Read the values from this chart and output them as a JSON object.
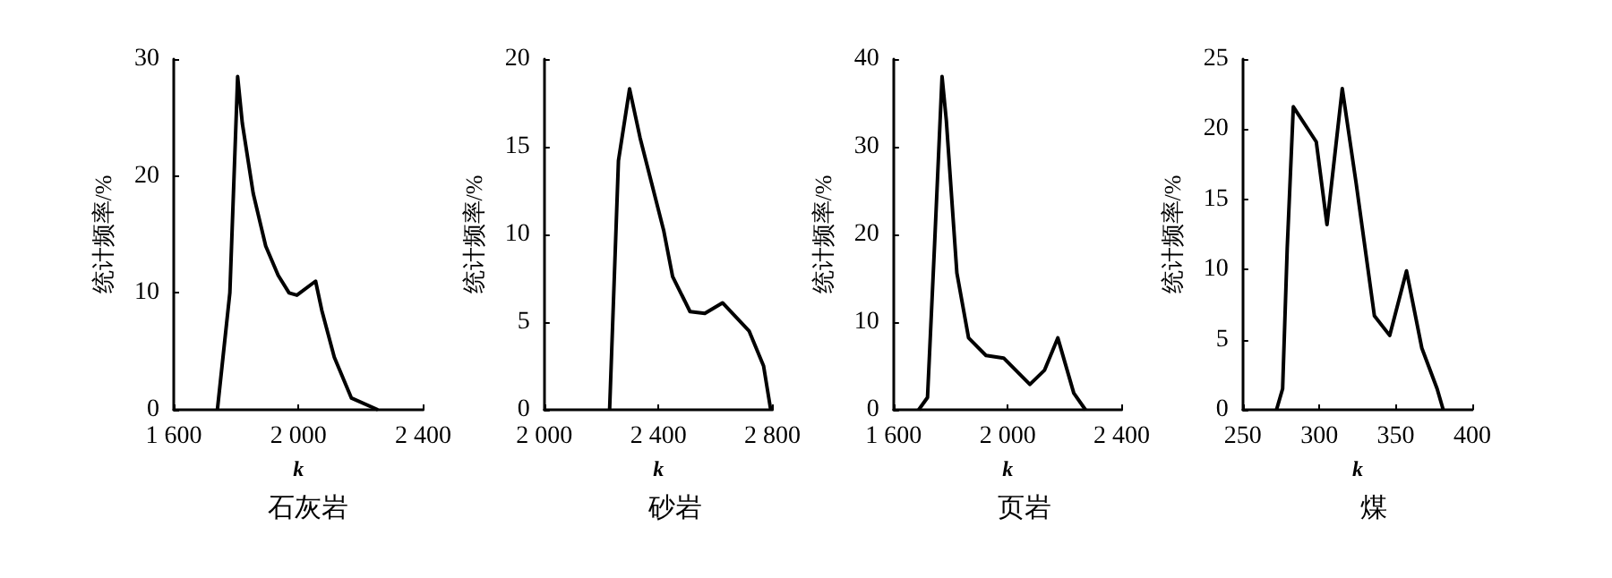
{
  "chart_data": [
    {
      "type": "line",
      "title": "石灰岩",
      "xlabel": "k",
      "ylabel": "统计频率/%",
      "grid": false,
      "marker": "none",
      "x": [
        1740,
        1780,
        1805,
        1820,
        1855,
        1895,
        1935,
        1970,
        1995,
        2055,
        2075,
        2115,
        2170,
        2255
      ],
      "series": [
        {
          "color": "#000000",
          "values": [
            0,
            10,
            28.5,
            24.5,
            18.5,
            14,
            11.5,
            10,
            9.8,
            11,
            8.5,
            4.5,
            1,
            0
          ]
        }
      ],
      "xlim": [
        1600,
        2400
      ],
      "xticks": [
        {
          "value": 1600,
          "label": "1 600"
        },
        {
          "value": 2000,
          "label": "2 000"
        },
        {
          "value": 2400,
          "label": "2 400"
        }
      ],
      "ylim": [
        0,
        30
      ],
      "yticks": [
        0,
        10,
        20,
        30
      ]
    },
    {
      "type": "line",
      "title": "砂岩",
      "xlabel": "k",
      "ylabel": "统计频率/%",
      "grid": false,
      "marker": "none",
      "x": [
        2229,
        2260,
        2299,
        2336,
        2419,
        2450,
        2511,
        2563,
        2625,
        2718,
        2769,
        2794
      ],
      "series": [
        {
          "color": "#000000",
          "values": [
            0,
            14.2,
            18.3,
            15.5,
            10.2,
            7.6,
            5.6,
            5.5,
            6.1,
            4.5,
            2.5,
            0
          ]
        }
      ],
      "xlim": [
        2000,
        2800
      ],
      "xticks": [
        {
          "value": 2000,
          "label": "2 000"
        },
        {
          "value": 2400,
          "label": "2 400"
        },
        {
          "value": 2800,
          "label": "2 800"
        }
      ],
      "ylim": [
        0,
        20
      ],
      "yticks": [
        0,
        5,
        10,
        15,
        20
      ]
    },
    {
      "type": "line",
      "title": "页岩",
      "xlabel": "k",
      "ylabel": "统计频率/%",
      "grid": false,
      "marker": "none",
      "x": [
        1688,
        1719,
        1744,
        1770,
        1785,
        1822,
        1863,
        1924,
        1986,
        2078,
        2129,
        2176,
        2232,
        2273
      ],
      "series": [
        {
          "color": "#000000",
          "values": [
            0,
            1.4,
            19,
            38,
            33,
            15.6,
            8.2,
            6.2,
            5.9,
            2.9,
            4.5,
            8.2,
            1.9,
            0
          ]
        }
      ],
      "xlim": [
        1600,
        2400
      ],
      "xticks": [
        {
          "value": 1600,
          "label": "1 600"
        },
        {
          "value": 2000,
          "label": "2 000"
        },
        {
          "value": 2400,
          "label": "2 400"
        }
      ],
      "ylim": [
        0,
        40
      ],
      "yticks": [
        0,
        10,
        20,
        30,
        40
      ]
    },
    {
      "type": "line",
      "title": "煤",
      "xlabel": "k",
      "ylabel": "统计频率/%",
      "grid": false,
      "marker": "none",
      "x": [
        272,
        276,
        279,
        283,
        298,
        305,
        315,
        324,
        336,
        346,
        357,
        367,
        377,
        381
      ],
      "series": [
        {
          "color": "#000000",
          "values": [
            0,
            1.5,
            11.5,
            21.6,
            19.1,
            13.2,
            22.9,
            16.2,
            6.7,
            5.3,
            9.9,
            4.4,
            1.5,
            0
          ]
        }
      ],
      "xlim": [
        250,
        400
      ],
      "xticks": [
        250,
        300,
        350,
        400
      ],
      "ylim": [
        0,
        25
      ],
      "yticks": [
        0,
        5,
        10,
        15,
        20,
        25
      ]
    }
  ]
}
